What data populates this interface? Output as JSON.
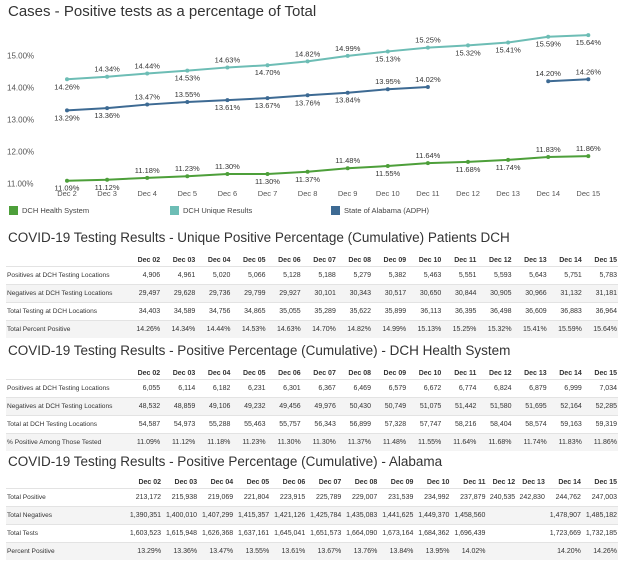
{
  "chart_title": "Cases - Positive tests as a percentage of Total",
  "chart_data": {
    "type": "line",
    "title": "Cases - Positive tests as a percentage of Total",
    "categories": [
      "Dec 2",
      "Dec 3",
      "Dec 4",
      "Dec 5",
      "Dec 6",
      "Dec 7",
      "Dec 8",
      "Dec 9",
      "Dec 10",
      "Dec 11",
      "Dec 12",
      "Dec 13",
      "Dec 14",
      "Dec 15"
    ],
    "ylim": [
      10.8,
      15.8
    ],
    "yticks": [
      "11.00%",
      "12.00%",
      "13.00%",
      "14.00%",
      "15.00%"
    ],
    "ytick_values": [
      11,
      12,
      13,
      14,
      15
    ],
    "grid": false,
    "legend_placement": "bottom",
    "series": [
      {
        "name": "DCH Health System",
        "color": "#4d9f3a",
        "values": [
          11.09,
          11.12,
          11.18,
          11.23,
          11.3,
          11.3,
          11.37,
          11.48,
          11.55,
          11.64,
          11.68,
          11.74,
          11.83,
          11.86
        ],
        "labels": [
          "11.09%",
          "11.12%",
          "11.18%",
          "11.23%",
          "11.30%",
          "11.30%",
          "11.37%",
          "11.48%",
          "11.55%",
          "11.64%",
          "11.68%",
          "11.74%",
          "11.83%",
          "11.86%"
        ]
      },
      {
        "name": "DCH Unique Results",
        "color": "#6dbdb5",
        "values": [
          14.26,
          14.34,
          14.44,
          14.53,
          14.63,
          14.7,
          14.82,
          14.99,
          15.13,
          15.25,
          15.32,
          15.41,
          15.59,
          15.64
        ],
        "labels": [
          "14.26%",
          "14.34%",
          "14.44%",
          "14.53%",
          "14.63%",
          "14.70%",
          "14.82%",
          "14.99%",
          "15.13%",
          "15.25%",
          "15.32%",
          "15.41%",
          "15.59%",
          "15.64%"
        ]
      },
      {
        "name": "State of Alabama (ADPH)",
        "color": "#3d6a93",
        "values": [
          13.29,
          13.36,
          13.47,
          13.55,
          13.61,
          13.67,
          13.76,
          13.84,
          13.95,
          14.02,
          null,
          null,
          14.2,
          14.26
        ],
        "labels": [
          "13.29%",
          "13.36%",
          "13.47%",
          "13.55%",
          "13.61%",
          "13.67%",
          "13.76%",
          "13.84%",
          "13.95%",
          "14.02%",
          "",
          "",
          "14.20%",
          "14.26%"
        ]
      }
    ]
  },
  "legend": [
    {
      "name": "DCH Health System",
      "color": "#4d9f3a"
    },
    {
      "name": "DCH Unique Results",
      "color": "#6dbdb5"
    },
    {
      "name": "State of Alabama (ADPH)",
      "color": "#3d6a93"
    }
  ],
  "tables": [
    {
      "title": "COVID-19 Testing Results - Unique Positive Percentage (Cumulative) Patients DCH",
      "headers": [
        "Dec 02",
        "Dec 03",
        "Dec 04",
        "Dec 05",
        "Dec 06",
        "Dec 07",
        "Dec 08",
        "Dec 09",
        "Dec 10",
        "Dec 11",
        "Dec 12",
        "Dec 13",
        "Dec 14",
        "Dec 15"
      ],
      "rows": [
        {
          "label": "Positives at DCH Testing Locations",
          "values": [
            "4,906",
            "4,961",
            "5,020",
            "5,066",
            "5,128",
            "5,188",
            "5,279",
            "5,382",
            "5,463",
            "5,551",
            "5,593",
            "5,643",
            "5,751",
            "5,783"
          ]
        },
        {
          "label": "Negatives at DCH Testing Locations",
          "values": [
            "29,497",
            "29,628",
            "29,736",
            "29,799",
            "29,927",
            "30,101",
            "30,343",
            "30,517",
            "30,650",
            "30,844",
            "30,905",
            "30,966",
            "31,132",
            "31,181"
          ]
        },
        {
          "label": "Total Testing at DCH Locations",
          "values": [
            "34,403",
            "34,589",
            "34,756",
            "34,865",
            "35,055",
            "35,289",
            "35,622",
            "35,899",
            "36,113",
            "36,395",
            "36,498",
            "36,609",
            "36,883",
            "36,964"
          ]
        },
        {
          "label": "Total Percent Positive",
          "values": [
            "14.26%",
            "14.34%",
            "14.44%",
            "14.53%",
            "14.63%",
            "14.70%",
            "14.82%",
            "14.99%",
            "15.13%",
            "15.25%",
            "15.32%",
            "15.41%",
            "15.59%",
            "15.64%"
          ]
        }
      ]
    },
    {
      "title": "COVID-19 Testing Results - Positive Percentage (Cumulative) - DCH Health System",
      "headers": [
        "Dec 02",
        "Dec 03",
        "Dec 04",
        "Dec 05",
        "Dec 06",
        "Dec 07",
        "Dec 08",
        "Dec 09",
        "Dec 10",
        "Dec 11",
        "Dec 12",
        "Dec 13",
        "Dec 14",
        "Dec 15"
      ],
      "rows": [
        {
          "label": "Positives at DCH Testing Locations",
          "values": [
            "6,055",
            "6,114",
            "6,182",
            "6,231",
            "6,301",
            "6,367",
            "6,469",
            "6,579",
            "6,672",
            "6,774",
            "6,824",
            "6,879",
            "6,999",
            "7,034"
          ]
        },
        {
          "label": "Negatives at DCH Testing Locations",
          "values": [
            "48,532",
            "48,859",
            "49,106",
            "49,232",
            "49,456",
            "49,976",
            "50,430",
            "50,749",
            "51,075",
            "51,442",
            "51,580",
            "51,695",
            "52,164",
            "52,285"
          ]
        },
        {
          "label": "Total at DCH Testing Locations",
          "values": [
            "54,587",
            "54,973",
            "55,288",
            "55,463",
            "55,757",
            "56,343",
            "56,899",
            "57,328",
            "57,747",
            "58,216",
            "58,404",
            "58,574",
            "59,163",
            "59,319"
          ]
        },
        {
          "label": "% Positive Among Those Tested",
          "values": [
            "11.09%",
            "11.12%",
            "11.18%",
            "11.23%",
            "11.30%",
            "11.30%",
            "11.37%",
            "11.48%",
            "11.55%",
            "11.64%",
            "11.68%",
            "11.74%",
            "11.83%",
            "11.86%"
          ]
        }
      ]
    },
    {
      "title": "COVID-19 Testing Results - Positive Percentage (Cumulative) - Alabama",
      "headers": [
        "Dec 02",
        "Dec 03",
        "Dec 04",
        "Dec 05",
        "Dec 06",
        "Dec 07",
        "Dec 08",
        "Dec 09",
        "Dec 10",
        "Dec 11",
        "Dec 12",
        "Dec 13",
        "Dec 14",
        "Dec 15"
      ],
      "rows": [
        {
          "label": "Total Positive",
          "values": [
            "213,172",
            "215,938",
            "219,069",
            "221,804",
            "223,915",
            "225,789",
            "229,007",
            "231,539",
            "234,992",
            "237,879",
            "240,535",
            "242,830",
            "244,762",
            "247,003"
          ]
        },
        {
          "label": "Total Negatives",
          "values": [
            "1,390,351",
            "1,400,010",
            "1,407,299",
            "1,415,357",
            "1,421,126",
            "1,425,784",
            "1,435,083",
            "1,441,625",
            "1,449,370",
            "1,458,560",
            "",
            "",
            "1,478,907",
            "1,485,182"
          ]
        },
        {
          "label": "Total Tests",
          "values": [
            "1,603,523",
            "1,615,948",
            "1,626,368",
            "1,637,161",
            "1,645,041",
            "1,651,573",
            "1,664,090",
            "1,673,164",
            "1,684,362",
            "1,696,439",
            "",
            "",
            "1,723,669",
            "1,732,185"
          ]
        },
        {
          "label": "Percent Positive",
          "values": [
            "13.29%",
            "13.36%",
            "13.47%",
            "13.55%",
            "13.61%",
            "13.67%",
            "13.76%",
            "13.84%",
            "13.95%",
            "14.02%",
            "",
            "",
            "14.20%",
            "14.26%"
          ]
        }
      ]
    }
  ]
}
